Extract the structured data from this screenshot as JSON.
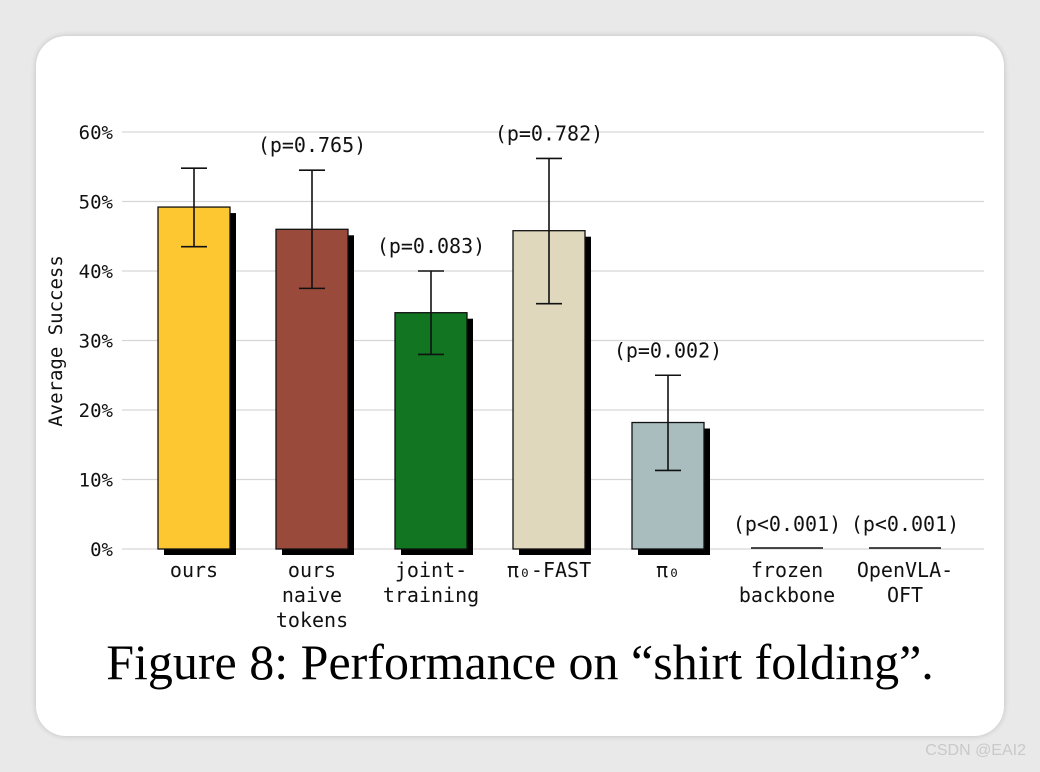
{
  "caption": "Figure 8: Performance on “shirt folding”.",
  "watermark": "CSDN @EAI2",
  "chart_data": {
    "type": "bar",
    "title": "",
    "xlabel": "",
    "ylabel": "Average Success",
    "ylim": [
      0,
      60
    ],
    "yticks": [
      "0%",
      "10%",
      "20%",
      "30%",
      "40%",
      "50%",
      "60%"
    ],
    "grid": true,
    "categories": [
      {
        "lines": [
          "ours"
        ]
      },
      {
        "lines": [
          "ours",
          "naive",
          "tokens"
        ]
      },
      {
        "lines": [
          "joint-",
          "training"
        ]
      },
      {
        "lines": [
          "π₀-FAST"
        ]
      },
      {
        "lines": [
          "π₀"
        ]
      },
      {
        "lines": [
          "frozen",
          "backbone"
        ]
      },
      {
        "lines": [
          "OpenVLA-",
          "OFT"
        ]
      }
    ],
    "values": [
      49.2,
      46.0,
      34.0,
      45.8,
      18.2,
      0,
      0
    ],
    "error_low": [
      43.5,
      37.5,
      28.0,
      35.3,
      11.3,
      null,
      null
    ],
    "error_high": [
      54.8,
      54.5,
      40.0,
      56.2,
      25.0,
      null,
      null
    ],
    "annotations": [
      "",
      "(p=0.765)",
      "(p=0.083)",
      "(p=0.782)",
      "(p=0.002)",
      "(p<0.001)",
      "(p<0.001)"
    ],
    "colors": [
      "#fdc731",
      "#9a4a3a",
      "#117521",
      "#e0d8bd",
      "#a9bcbe",
      "#ffffff",
      "#ffffff"
    ]
  }
}
